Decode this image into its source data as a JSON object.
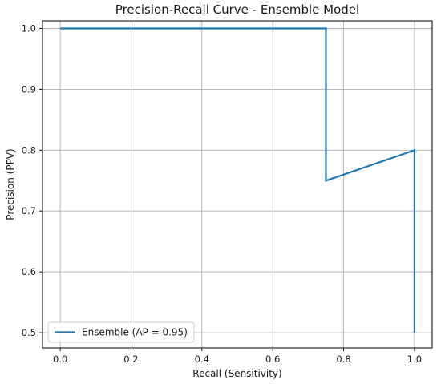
{
  "chart_data": {
    "type": "line",
    "title": "Precision-Recall Curve - Ensemble Model",
    "xlabel": "Recall (Sensitivity)",
    "ylabel": "Precision (PPV)",
    "xlim": [
      -0.05,
      1.05
    ],
    "ylim": [
      0.475,
      1.0125
    ],
    "xticks": [
      0.0,
      0.2,
      0.4,
      0.6,
      0.8,
      1.0
    ],
    "xtick_labels": [
      "0.0",
      "0.2",
      "0.4",
      "0.6",
      "0.8",
      "1.0"
    ],
    "yticks": [
      0.5,
      0.6,
      0.7,
      0.8,
      0.9,
      1.0
    ],
    "ytick_labels": [
      "0.5",
      "0.6",
      "0.7",
      "0.8",
      "0.9",
      "1.0"
    ],
    "grid": true,
    "legend_position": "lower-left",
    "series": [
      {
        "name": "Ensemble (AP = 0.95)",
        "color": "#1f77b4",
        "x": [
          0.0,
          0.75,
          0.75,
          1.0,
          1.0
        ],
        "y": [
          1.0,
          1.0,
          0.75,
          0.8,
          0.5
        ]
      }
    ]
  }
}
